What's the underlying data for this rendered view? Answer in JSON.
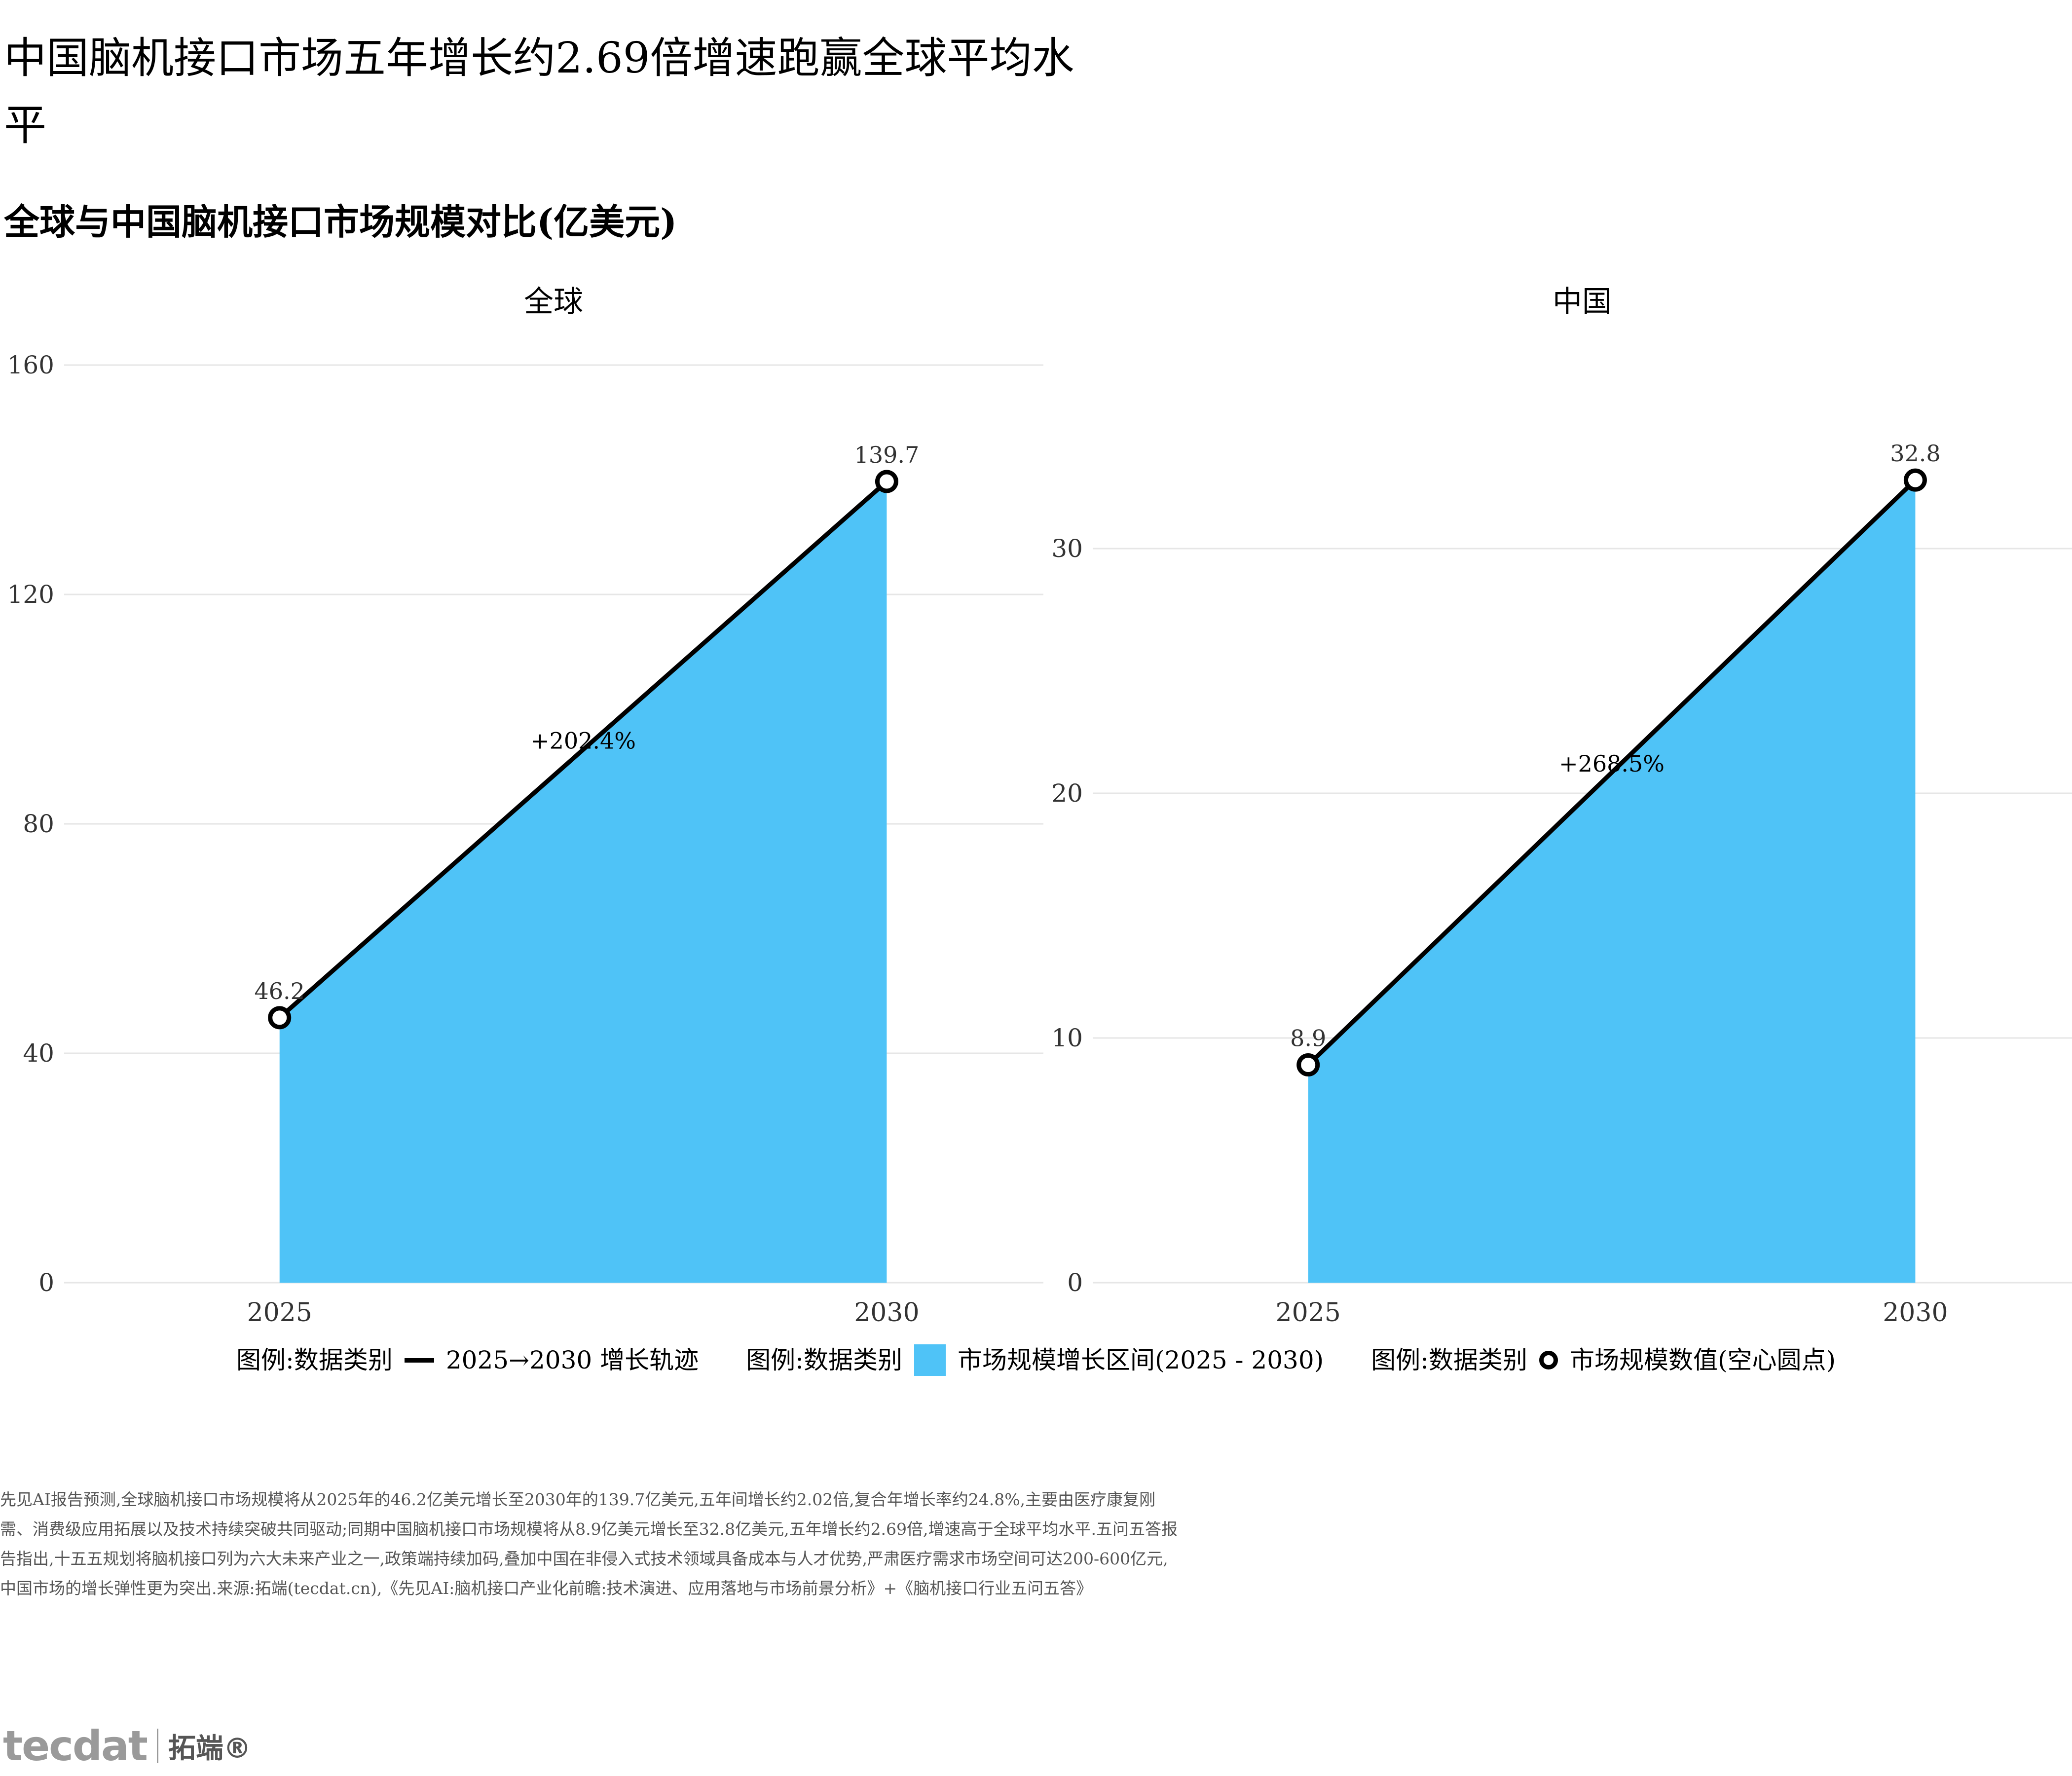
{
  "title": "中国脑机接口市场五年增长约2.69倍增速跑赢全球平均水平",
  "subtitle": "全球与中国脑机接口市场规模对比(亿美元)",
  "chart_data": [
    {
      "type": "area",
      "panel_title": "全球",
      "x": [
        "2025",
        "2030"
      ],
      "values": [
        46.2,
        139.7
      ],
      "value_labels": [
        "46.2",
        "139.7"
      ],
      "growth_label": "+202.4%",
      "ylim": [
        0,
        160
      ],
      "yticks": [
        0,
        40,
        80,
        120,
        160
      ],
      "ytick_labels": [
        "0",
        "40",
        "80",
        "120",
        "160"
      ],
      "xtick_labels": [
        "2025",
        "2030"
      ],
      "grid": true
    },
    {
      "type": "area",
      "panel_title": "中国",
      "x": [
        "2025",
        "2030"
      ],
      "values": [
        8.9,
        32.8
      ],
      "value_labels": [
        "8.9",
        "32.8"
      ],
      "growth_label": "+268.5%",
      "ylim": [
        0,
        37.5
      ],
      "yticks": [
        0,
        10,
        20,
        30
      ],
      "ytick_labels": [
        "0",
        "10",
        "20",
        "30"
      ],
      "xtick_labels": [
        "2025",
        "2030"
      ],
      "grid": true
    }
  ],
  "legend": {
    "placement": "bottom",
    "groups": [
      {
        "heading": "图例:数据类别",
        "label": "2025→2030 增长轨迹"
      },
      {
        "heading": "图例:数据类别",
        "label": "市场规模增长区间(2025 - 2030)"
      },
      {
        "heading": "图例:数据类别",
        "label": "市场规模数值(空心圆点)"
      }
    ]
  },
  "colors": {
    "area": "#4fc3f7",
    "line": "#000000",
    "grid": "#e6e6e6",
    "text": "#000000",
    "caption": "#555555"
  },
  "caption": "先见AI报告预测,全球脑机接口市场规模将从2025年的46.2亿美元增长至2030年的139.7亿美元,五年间增长约2.02倍,复合年增长率约24.8%,主要由医疗康复刚需、消费级应用拓展以及技术持续突破共同驱动;同期中国脑机接口市场规模将从8.9亿美元增长至32.8亿美元,五年增长约2.69倍,增速高于全球平均水平.五问五答报告指出,十五五规划将脑机接口列为六大未来产业之一,政策端持续加码,叠加中国在非侵入式技术领域具备成本与人才优势,严肃医疗需求市场空间可达200-600亿元,中国市场的增长弹性更为突出.来源:拓端(tecdat.cn),《先见AI:脑机接口产业化前瞻:技术演进、应用落地与市场前景分析》+《脑机接口行业五问五答》",
  "logo": {
    "mark": "tecdat",
    "name": "拓端®"
  }
}
